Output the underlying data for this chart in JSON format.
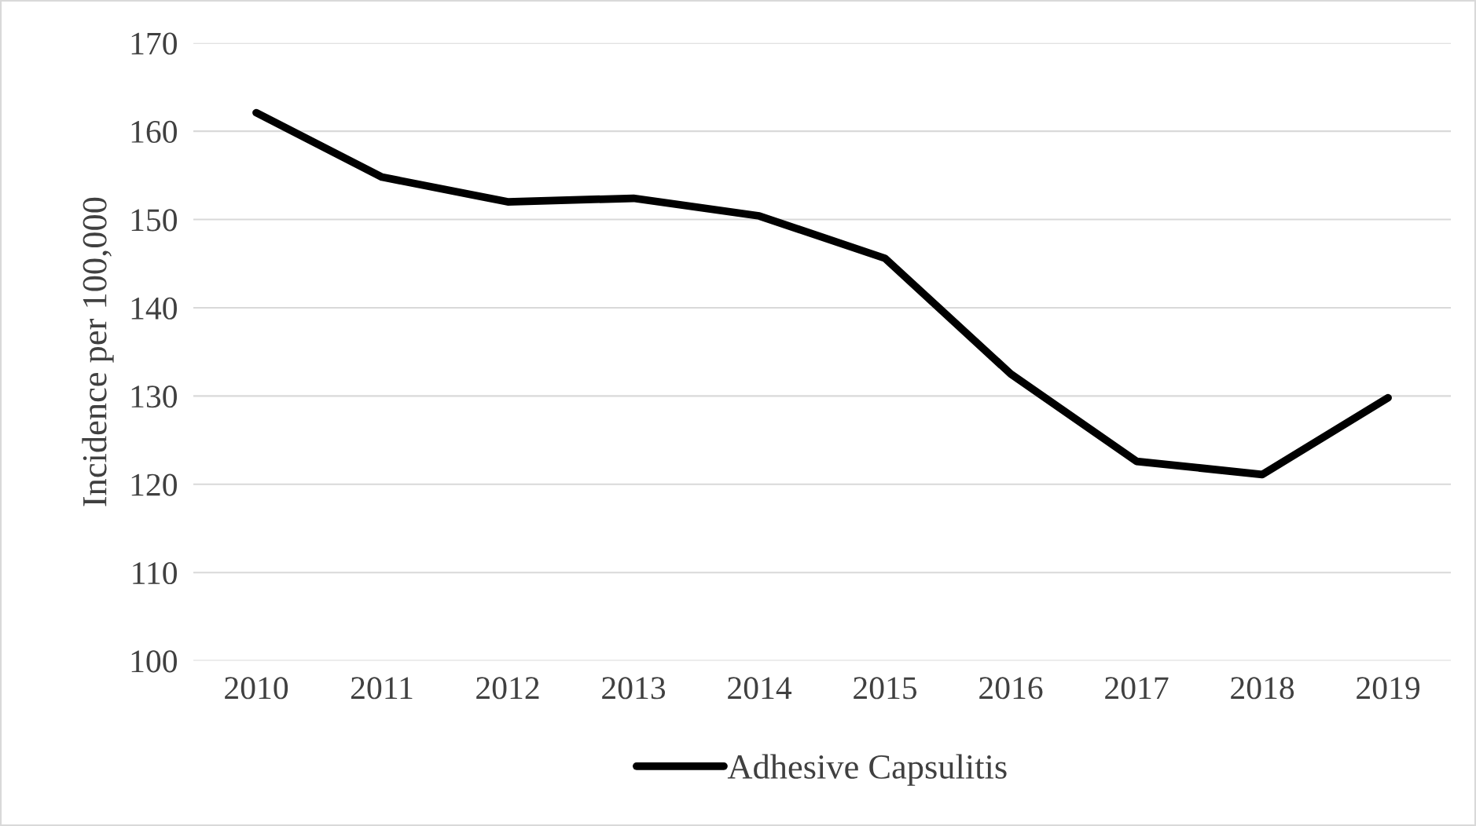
{
  "chart_data": {
    "type": "line",
    "ylabel": "Incidence per 100,000",
    "categories": [
      "2010",
      "2011",
      "2012",
      "2013",
      "2014",
      "2015",
      "2016",
      "2017",
      "2018",
      "2019"
    ],
    "series": [
      {
        "name": "Adhesive Capsulitis",
        "color": "#000000",
        "values": [
          162.1,
          154.8,
          152.0,
          152.4,
          150.4,
          145.6,
          132.5,
          122.6,
          121.1,
          129.8
        ]
      }
    ],
    "ylim": [
      100,
      170
    ],
    "yticks": [
      100,
      110,
      120,
      130,
      140,
      150,
      160,
      170
    ],
    "grid": "y",
    "legend": "bottom",
    "marker": "none",
    "line_style": "solid"
  }
}
